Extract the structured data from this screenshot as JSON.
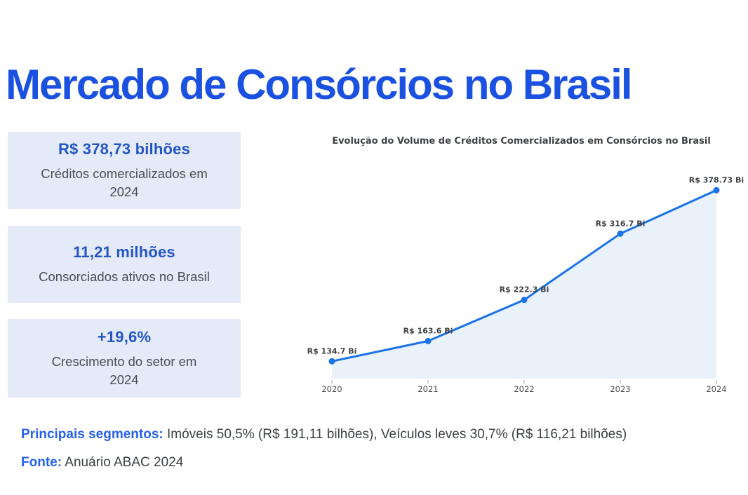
{
  "title": "Mercado de Consórcios no Brasil",
  "stats": [
    {
      "value": "R$ 378,73 bilhões",
      "label": "Créditos comercializados em\n2024"
    },
    {
      "value": "11,21 milhões",
      "label": "Consorciados ativos no Brasil"
    },
    {
      "value": "+19,6%",
      "label": "Crescimento do setor em\n2024"
    }
  ],
  "chart_data": {
    "type": "area",
    "title": "Evolução do Volume de Créditos Comercializados em Consórcios no Brasil",
    "categories": [
      "2020",
      "2021",
      "2022",
      "2023",
      "2024"
    ],
    "values": [
      134.7,
      163.6,
      222.3,
      316.7,
      378.73
    ],
    "point_labels": [
      "R$ 134.7 Bi",
      "R$ 163.6 Bi",
      "R$ 222.3 Bi",
      "R$ 316.7 Bi",
      "R$ 378.73 Bi"
    ],
    "xlabel": "",
    "ylabel": "",
    "ylim": [
      110,
      400
    ],
    "grid": false,
    "legend": "none",
    "colors": {
      "line": "#1a73e8",
      "fill": "#e9f1fb",
      "point": "#1a73e8",
      "point_label": "#3d4043",
      "tick": "#9aa0a6",
      "tick_label": "#4b4b4b"
    }
  },
  "footer": {
    "segments_label": "Principais segmentos:",
    "segments_text": " Imóveis 50,5% (R$ 191,11 bilhões), Veículos leves 30,7% (R$ 116,21 bilhões)",
    "source_label": "Fonte:",
    "source_text": " Anuário ABAC 2024"
  },
  "colors": {
    "title_blue": "#1b51e0",
    "card_bg": "#e4eaf7",
    "card_value_blue": "#2356c4",
    "body_gray": "#3c4043",
    "footer_blue": "#2563eb"
  }
}
